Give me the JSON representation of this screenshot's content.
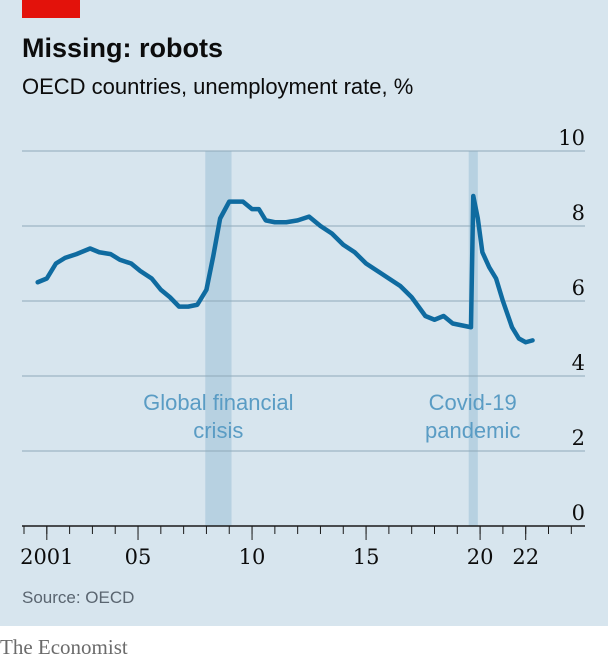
{
  "chart_data": {
    "type": "line",
    "title": "Missing: robots",
    "subtitle": "OECD countries, unemployment rate, %",
    "source": "Source: OECD",
    "brand": "The Economist",
    "x": [
      2000.6,
      2001.0,
      2001.4,
      2001.8,
      2002.3,
      2002.9,
      2003.3,
      2003.8,
      2004.2,
      2004.7,
      2005.1,
      2005.6,
      2006.0,
      2006.4,
      2006.8,
      2007.2,
      2007.6,
      2008.0,
      2008.3,
      2008.6,
      2009.0,
      2009.6,
      2010.0,
      2010.3,
      2010.6,
      2011.0,
      2011.5,
      2012.0,
      2012.5,
      2013.0,
      2013.5,
      2014.0,
      2014.5,
      2015.0,
      2015.5,
      2016.0,
      2016.5,
      2017.0,
      2017.6,
      2018.0,
      2018.4,
      2018.8,
      2019.2,
      2019.6,
      2019.7,
      2019.9,
      2020.1,
      2020.4,
      2020.7,
      2021.0,
      2021.4,
      2021.7,
      2022.0,
      2022.3
    ],
    "series": [
      {
        "name": "Unemployment rate",
        "color": "#0f6ba0",
        "values": [
          6.5,
          6.6,
          7.0,
          7.15,
          7.25,
          7.4,
          7.3,
          7.25,
          7.1,
          7.0,
          6.8,
          6.6,
          6.3,
          6.1,
          5.85,
          5.85,
          5.9,
          6.3,
          7.2,
          8.2,
          8.65,
          8.65,
          8.45,
          8.45,
          8.15,
          8.1,
          8.1,
          8.15,
          8.25,
          8.0,
          7.8,
          7.5,
          7.3,
          7.0,
          6.8,
          6.6,
          6.4,
          6.1,
          5.6,
          5.5,
          5.6,
          5.4,
          5.35,
          5.3,
          8.8,
          8.2,
          7.3,
          6.9,
          6.6,
          6.0,
          5.3,
          5.0,
          4.9,
          4.95
        ]
      }
    ],
    "highlights": [
      {
        "range": [
          2007.95,
          2009.1
        ],
        "label": [
          "Global financial",
          "crisis"
        ]
      },
      {
        "range": [
          2019.5,
          2019.9
        ],
        "label": [
          "Covid-19",
          "pandemic"
        ]
      }
    ],
    "xlim": [
      2000,
      2024.6
    ],
    "ylim": [
      0,
      10
    ],
    "yticks": [
      0,
      2,
      4,
      6,
      8,
      10
    ],
    "xticks": [
      {
        "value": 2001,
        "label": "2001"
      },
      {
        "value": 2005,
        "label": "05"
      },
      {
        "value": 2010,
        "label": "10"
      },
      {
        "value": 2015,
        "label": "15"
      },
      {
        "value": 2020,
        "label": "20"
      },
      {
        "value": 2022,
        "label": "22"
      }
    ],
    "xminorticks": [
      2000,
      2001,
      2002,
      2003,
      2004,
      2005,
      2006,
      2007,
      2008,
      2009,
      2010,
      2011,
      2012,
      2013,
      2014,
      2015,
      2016,
      2017,
      2018,
      2019,
      2020,
      2021,
      2022,
      2023,
      2024
    ],
    "grid": true
  }
}
